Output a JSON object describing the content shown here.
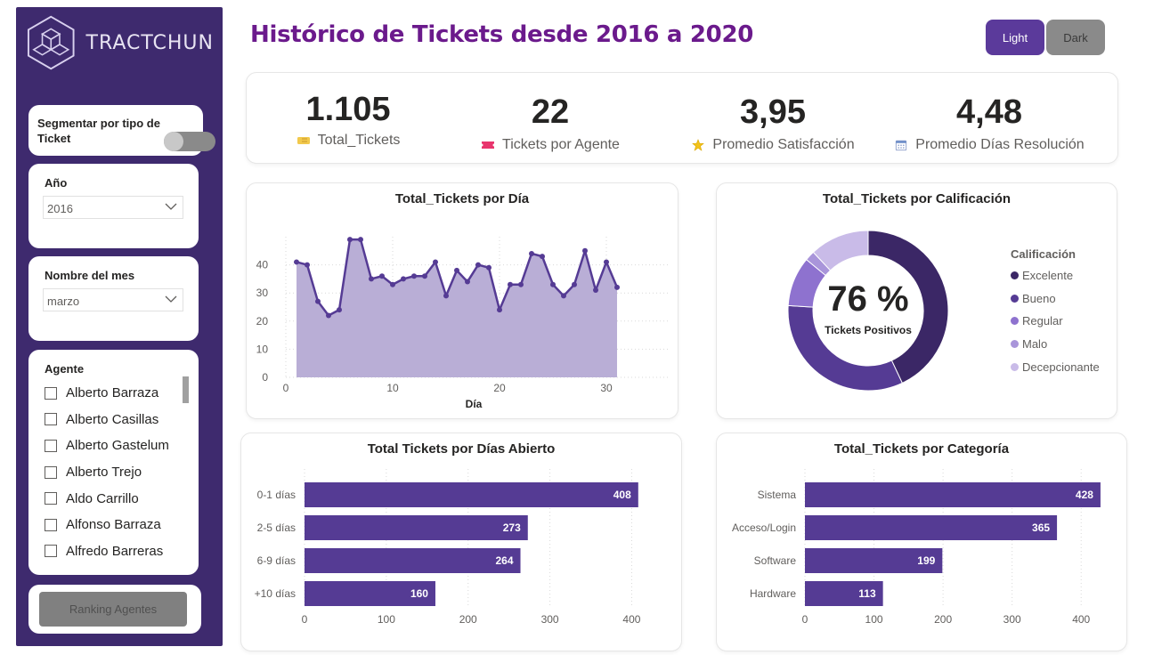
{
  "brand": {
    "name": "TRACTCHUN"
  },
  "page": {
    "title": "Histórico de Tickets desde 2016 a 2020"
  },
  "theme_toggle": {
    "light_label": "Light",
    "dark_label": "Dark",
    "active": "Light"
  },
  "sidebar": {
    "segment": {
      "label": "Segmentar por tipo de Ticket",
      "toggle_on": false
    },
    "year": {
      "title": "Año",
      "value": "2016"
    },
    "month": {
      "title": "Nombre del mes",
      "value": "marzo"
    },
    "agents": {
      "title": "Agente",
      "items": [
        "Alberto Barraza",
        "Alberto Casillas",
        "Alberto Gastelum",
        "Alberto Trejo",
        "Aldo Carrillo",
        "Alfonso Barraza",
        "Alfredo Barreras"
      ]
    },
    "ranking_button": "Ranking Agentes"
  },
  "kpis": [
    {
      "value": "1.105",
      "label": "Total_Tickets",
      "icon": "ticket-icon",
      "color": "#f2c94c"
    },
    {
      "value": "22",
      "label": "Tickets por Agente",
      "icon": "ticket-icon",
      "color": "#e8356d"
    },
    {
      "value": "3,95",
      "label": "Promedio Satisfacción",
      "icon": "star-icon",
      "color": "#f2c21b"
    },
    {
      "value": "4,48",
      "label": "Promedio Días Resolución",
      "icon": "calendar-icon",
      "color": "#6f8fc9"
    }
  ],
  "colors": {
    "accent": "#5b3a9b",
    "bar": "#553b94",
    "area_line": "#553b94",
    "area_fill": "#b9aed6",
    "title": "#6b1a8c",
    "sidebar": "#3e2a6e"
  },
  "chart_data": [
    {
      "type": "area",
      "title": "Total_Tickets por Día",
      "xlabel": "Día",
      "ylabel": "",
      "x_ticks": [
        0,
        10,
        20,
        30
      ],
      "y_ticks": [
        0,
        10,
        20,
        30,
        40
      ],
      "xlim": [
        0,
        36
      ],
      "ylim": [
        0,
        50
      ],
      "grid": true,
      "x": [
        1,
        2,
        3,
        4,
        5,
        6,
        7,
        8,
        9,
        10,
        11,
        12,
        13,
        14,
        15,
        16,
        17,
        18,
        19,
        20,
        21,
        22,
        23,
        24,
        25,
        26,
        27,
        28,
        29,
        30,
        31
      ],
      "values": [
        41,
        40,
        27,
        22,
        24,
        49,
        49,
        35,
        36,
        33,
        35,
        36,
        36,
        41,
        29,
        38,
        34,
        40,
        39,
        24,
        33,
        33,
        44,
        43,
        33,
        29,
        33,
        45,
        31,
        41,
        32
      ]
    },
    {
      "type": "pie",
      "title": "Total_Tickets por Calificación",
      "center_value": "76 %",
      "center_label": "Tickets Positivos",
      "legend_title": "Calificación",
      "legend_position": "right",
      "categories": [
        "Excelente",
        "Bueno",
        "Regular",
        "Malo",
        "Decepcionante"
      ],
      "values": [
        43,
        33,
        10,
        2,
        12
      ],
      "colors": [
        "#3b2766",
        "#553b94",
        "#8e72cf",
        "#a995da",
        "#c9bbe8"
      ]
    },
    {
      "type": "bar",
      "orientation": "horizontal",
      "title": "Total Tickets por Días Abierto",
      "categories": [
        "0-1 días",
        "2-5 días",
        "6-9 días",
        "+10 días"
      ],
      "values": [
        408,
        273,
        264,
        160
      ],
      "x_ticks": [
        0,
        100,
        200,
        300,
        400
      ],
      "xlim": [
        0,
        430
      ],
      "grid": true
    },
    {
      "type": "bar",
      "orientation": "horizontal",
      "title": "Total_Tickets por Categoría",
      "categories": [
        "Sistema",
        "Acceso/Login",
        "Software",
        "Hardware"
      ],
      "values": [
        428,
        365,
        199,
        113
      ],
      "x_ticks": [
        0,
        100,
        200,
        300,
        400
      ],
      "xlim": [
        0,
        450
      ],
      "grid": true
    }
  ]
}
